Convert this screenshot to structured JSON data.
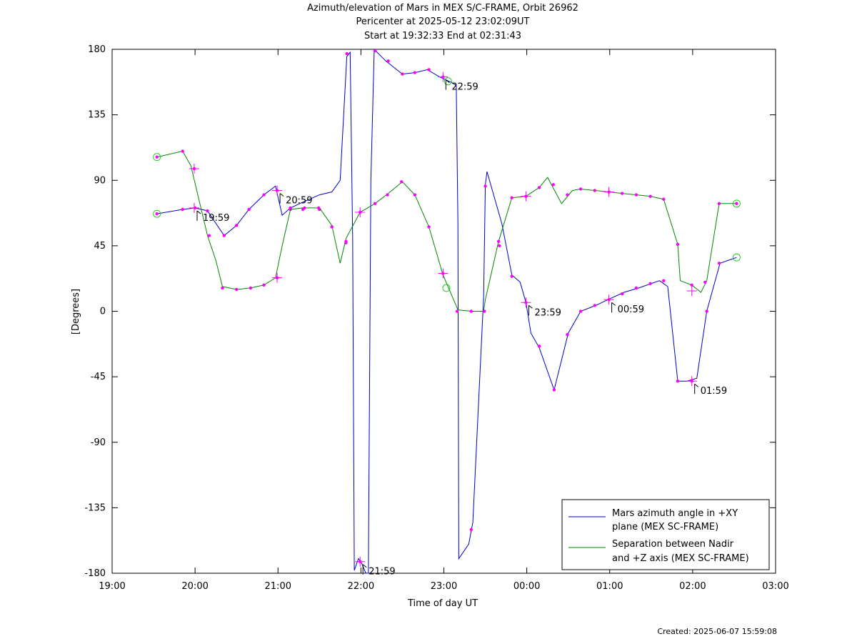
{
  "titles": {
    "line1": "Azimuth/elevation of Mars in MEX S/C-FRAME,  Orbit 26962",
    "line2": "Pericenter at 2025-05-12 23:02:09UT",
    "line3": "Start at 19:32:33 End at 02:31:43"
  },
  "footer": {
    "created": "Created: 2025-06-07 15:59:08"
  },
  "chart_data": {
    "type": "line",
    "title": "Azimuth/elevation of Mars in MEX S/C-FRAME,  Orbit 26962",
    "xlabel": "Time of day UT",
    "ylabel": "[Degrees]",
    "xlim_hours": [
      19,
      27
    ],
    "ylim": [
      -180,
      180
    ],
    "x_ticks": [
      "19:00",
      "20:00",
      "21:00",
      "22:00",
      "23:00",
      "00:00",
      "01:00",
      "02:00",
      "03:00"
    ],
    "y_ticks": [
      -180,
      -135,
      -90,
      -45,
      0,
      45,
      90,
      135,
      180
    ],
    "grid": false,
    "legend_position": "bottom-right",
    "series": [
      {
        "name": "Mars azimuth angle in +XY plane (MEX SC-FRAME)",
        "legend_line1": "Mars azimuth angle in +XY",
        "legend_line2": "plane (MEX SC-FRAME)",
        "color": "#0000cc",
        "points": [
          [
            19.54,
            67
          ],
          [
            19.85,
            70
          ],
          [
            20.0,
            71
          ],
          [
            20.15,
            69
          ],
          [
            20.35,
            52
          ],
          [
            20.5,
            59
          ],
          [
            20.65,
            70
          ],
          [
            20.83,
            80
          ],
          [
            20.97,
            86
          ],
          [
            21.05,
            66
          ],
          [
            21.15,
            71
          ],
          [
            21.3,
            75
          ],
          [
            21.5,
            80
          ],
          [
            21.65,
            82
          ],
          [
            21.75,
            90
          ],
          [
            21.83,
            175
          ],
          [
            21.87,
            178
          ],
          [
            21.9,
            50
          ],
          [
            21.92,
            -178
          ],
          [
            21.97,
            -170
          ],
          [
            22.0,
            -172
          ],
          [
            22.06,
            -180
          ],
          [
            22.09,
            -180
          ],
          [
            22.12,
            90
          ],
          [
            22.16,
            180
          ],
          [
            22.3,
            172
          ],
          [
            22.5,
            163
          ],
          [
            22.65,
            164
          ],
          [
            22.8,
            166
          ],
          [
            22.95,
            161
          ],
          [
            23.1,
            157
          ],
          [
            23.15,
            155
          ],
          [
            23.17,
            60
          ],
          [
            23.18,
            -170
          ],
          [
            23.3,
            -160
          ],
          [
            23.35,
            -145
          ],
          [
            23.48,
            10
          ],
          [
            23.5,
            87
          ],
          [
            23.52,
            96
          ],
          [
            23.7,
            60
          ],
          [
            23.82,
            25
          ],
          [
            23.92,
            20
          ],
          [
            23.99,
            6
          ],
          [
            24.05,
            -15
          ],
          [
            24.15,
            -25
          ],
          [
            24.33,
            -54
          ],
          [
            24.5,
            -15
          ],
          [
            24.65,
            0
          ],
          [
            24.83,
            4
          ],
          [
            24.98,
            8
          ],
          [
            25.17,
            13
          ],
          [
            25.35,
            16
          ],
          [
            25.6,
            21
          ],
          [
            25.7,
            17
          ],
          [
            25.82,
            -48
          ],
          [
            25.93,
            -48
          ],
          [
            26.05,
            -46
          ],
          [
            26.17,
            0
          ],
          [
            26.33,
            33
          ],
          [
            26.53,
            37
          ]
        ],
        "markers": [
          [
            19.54,
            67
          ],
          [
            19.85,
            70
          ],
          [
            20.0,
            71
          ],
          [
            20.15,
            69
          ],
          [
            20.35,
            52
          ],
          [
            20.5,
            59
          ],
          [
            20.65,
            70
          ],
          [
            20.83,
            80
          ],
          [
            20.99,
            83
          ],
          [
            21.15,
            70
          ],
          [
            21.3,
            70
          ],
          [
            21.5,
            70
          ],
          [
            21.65,
            58
          ],
          [
            21.82,
            47
          ],
          [
            21.83,
            177
          ],
          [
            21.99,
            -172
          ],
          [
            22.17,
            179
          ],
          [
            22.33,
            172
          ],
          [
            22.5,
            163
          ],
          [
            22.65,
            164
          ],
          [
            22.82,
            166
          ],
          [
            22.99,
            161
          ],
          [
            23.33,
            -150
          ],
          [
            23.5,
            86
          ],
          [
            23.67,
            45
          ],
          [
            23.82,
            24
          ],
          [
            23.99,
            6
          ],
          [
            24.15,
            -24
          ],
          [
            24.33,
            -54
          ],
          [
            24.49,
            -16
          ],
          [
            24.65,
            0
          ],
          [
            24.82,
            4
          ],
          [
            24.99,
            8
          ],
          [
            25.15,
            12
          ],
          [
            25.32,
            16
          ],
          [
            25.49,
            19
          ],
          [
            25.65,
            21
          ],
          [
            25.82,
            -48
          ],
          [
            25.99,
            -48
          ],
          [
            26.17,
            0
          ],
          [
            26.32,
            33
          ]
        ],
        "circles": [
          [
            19.54,
            67
          ],
          [
            23.05,
            158
          ],
          [
            26.53,
            37
          ]
        ]
      },
      {
        "name": "Separation between Nadir and +Z axis (MEX SC-FRAME)",
        "legend_line1": "Separation between Nadir",
        "legend_line2": "and +Z axis (MEX SC-FRAME)",
        "color": "#008800",
        "points": [
          [
            19.54,
            106
          ],
          [
            19.85,
            110
          ],
          [
            19.95,
            100
          ],
          [
            20.15,
            52
          ],
          [
            20.25,
            35
          ],
          [
            20.33,
            17
          ],
          [
            20.5,
            15
          ],
          [
            20.67,
            16
          ],
          [
            20.83,
            18
          ],
          [
            20.97,
            23
          ],
          [
            21.05,
            45
          ],
          [
            21.15,
            70
          ],
          [
            21.3,
            71
          ],
          [
            21.5,
            71
          ],
          [
            21.65,
            59
          ],
          [
            21.75,
            33
          ],
          [
            21.82,
            50
          ],
          [
            21.99,
            68
          ],
          [
            22.17,
            74
          ],
          [
            22.33,
            81
          ],
          [
            22.5,
            89
          ],
          [
            22.65,
            80
          ],
          [
            22.82,
            58
          ],
          [
            22.99,
            25
          ],
          [
            23.17,
            1
          ],
          [
            23.33,
            0
          ],
          [
            23.48,
            0
          ],
          [
            23.5,
            8
          ],
          [
            23.66,
            48
          ],
          [
            23.82,
            78
          ],
          [
            23.99,
            79
          ],
          [
            24.15,
            85
          ],
          [
            24.25,
            92
          ],
          [
            24.42,
            74
          ],
          [
            24.55,
            83
          ],
          [
            24.65,
            84
          ],
          [
            24.82,
            83
          ],
          [
            24.99,
            82
          ],
          [
            25.15,
            81
          ],
          [
            25.32,
            80
          ],
          [
            25.49,
            79
          ],
          [
            25.65,
            77
          ],
          [
            25.82,
            46
          ],
          [
            25.85,
            21
          ],
          [
            25.99,
            18
          ],
          [
            26.1,
            13
          ],
          [
            26.17,
            21
          ],
          [
            26.32,
            74
          ],
          [
            26.53,
            74
          ]
        ],
        "markers": [
          [
            19.54,
            106
          ],
          [
            19.85,
            110
          ],
          [
            19.99,
            98
          ],
          [
            20.17,
            52
          ],
          [
            20.33,
            16
          ],
          [
            20.5,
            15
          ],
          [
            20.67,
            16
          ],
          [
            20.83,
            18
          ],
          [
            20.99,
            23
          ],
          [
            21.15,
            71
          ],
          [
            21.32,
            71
          ],
          [
            21.49,
            71
          ],
          [
            21.65,
            58
          ],
          [
            21.82,
            48
          ],
          [
            21.99,
            68
          ],
          [
            22.17,
            74
          ],
          [
            22.32,
            80
          ],
          [
            22.49,
            89
          ],
          [
            22.65,
            80
          ],
          [
            22.82,
            58
          ],
          [
            22.99,
            26
          ],
          [
            23.16,
            0
          ],
          [
            23.33,
            0
          ],
          [
            23.49,
            0
          ],
          [
            23.66,
            48
          ],
          [
            23.82,
            78
          ],
          [
            23.99,
            79
          ],
          [
            24.15,
            85
          ],
          [
            24.32,
            87
          ],
          [
            24.49,
            80
          ],
          [
            24.65,
            84
          ],
          [
            24.82,
            83
          ],
          [
            24.99,
            82
          ],
          [
            25.15,
            81
          ],
          [
            25.32,
            80
          ],
          [
            25.49,
            79
          ],
          [
            25.65,
            77
          ],
          [
            25.82,
            46
          ],
          [
            25.99,
            18
          ],
          [
            26.15,
            20
          ],
          [
            26.32,
            74
          ],
          [
            26.53,
            74
          ]
        ],
        "circles": [
          [
            19.54,
            106
          ],
          [
            23.03,
            16
          ],
          [
            26.53,
            74
          ]
        ]
      }
    ],
    "time_labels": [
      {
        "label": "19:59",
        "x": 19.99,
        "y": 71
      },
      {
        "label": "20:59",
        "x": 20.99,
        "y": 83
      },
      {
        "label": "21:59",
        "x": 21.99,
        "y": -172
      },
      {
        "label": "22:59",
        "x": 22.99,
        "y": 161
      },
      {
        "label": "23:59",
        "x": 23.99,
        "y": 6
      },
      {
        "label": "00:59",
        "x": 24.99,
        "y": 8
      },
      {
        "label": "01:59",
        "x": 25.99,
        "y": -48
      }
    ],
    "crosses": [
      [
        19.99,
        71
      ],
      [
        19.99,
        98
      ],
      [
        20.99,
        83
      ],
      [
        20.99,
        23
      ],
      [
        21.99,
        68
      ],
      [
        21.99,
        -172
      ],
      [
        22.99,
        161
      ],
      [
        22.99,
        26
      ],
      [
        23.99,
        6
      ],
      [
        23.99,
        79
      ],
      [
        24.99,
        8
      ],
      [
        24.99,
        82
      ],
      [
        25.99,
        -48
      ],
      [
        25.99,
        14
      ]
    ]
  }
}
